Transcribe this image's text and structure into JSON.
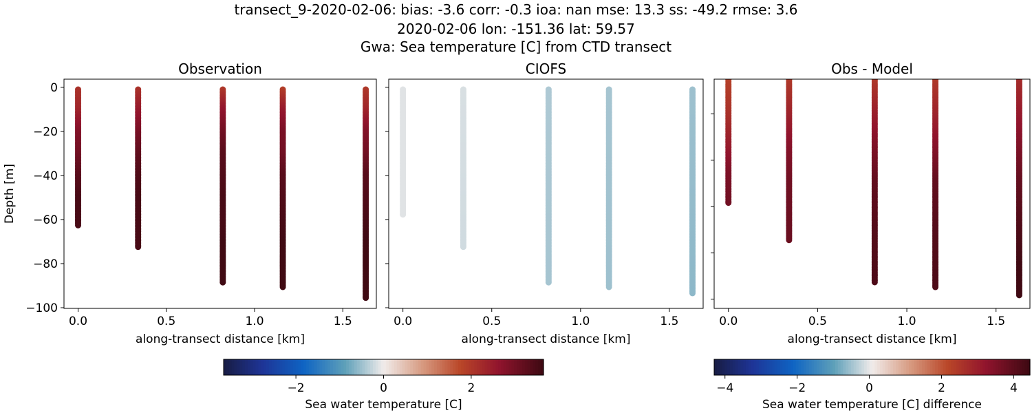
{
  "figure": {
    "title_lines": [
      "transect_9-2020-02-06: bias: -3.6  corr: -0.3  ioa: nan  mse: 13.3  ss: -49.2  rmse: 3.6",
      "2020-02-06 lon: -151.36 lat: 59.57",
      "Gwa: Sea temperature [C] from CTD transect"
    ]
  },
  "chart_data": [
    {
      "type": "scatter",
      "title": "Observation",
      "xlabel": "along-transect distance [km]",
      "ylabel": "Depth [m]",
      "xlim": [
        -0.08,
        1.69
      ],
      "ylim": [
        -100.3,
        3.7
      ],
      "xticks": [
        0.0,
        0.5,
        1.0,
        1.5
      ],
      "xtick_labels": [
        "0.0",
        "0.5",
        "1.0",
        "1.5"
      ],
      "yticks": [
        0,
        -20,
        -40,
        -60,
        -80,
        -100
      ],
      "ytick_labels": [
        "0",
        "−20",
        "−40",
        "−60",
        "−80",
        "−100"
      ],
      "colormap": "balance",
      "clim": [
        -3.65,
        3.65
      ],
      "profiles": [
        {
          "x": 0.0,
          "depth": [
            -1,
            -10,
            -20,
            -30,
            -40,
            -50,
            -63
          ],
          "value": [
            2.1,
            2.3,
            2.8,
            3.0,
            3.3,
            3.5,
            3.5
          ]
        },
        {
          "x": 0.34,
          "depth": [
            -1,
            -10,
            -20,
            -30,
            -40,
            -50,
            -60,
            -73
          ],
          "value": [
            2.1,
            2.5,
            2.9,
            3.2,
            3.4,
            3.5,
            3.5,
            3.5
          ]
        },
        {
          "x": 0.82,
          "depth": [
            -1,
            -10,
            -20,
            -30,
            -40,
            -50,
            -60,
            -70,
            -89
          ],
          "value": [
            2.0,
            2.6,
            3.0,
            3.3,
            3.4,
            3.5,
            3.5,
            3.6,
            3.6
          ]
        },
        {
          "x": 1.16,
          "depth": [
            -1,
            -10,
            -20,
            -30,
            -40,
            -50,
            -60,
            -70,
            -91
          ],
          "value": [
            1.9,
            2.5,
            2.9,
            3.0,
            3.3,
            3.4,
            3.5,
            3.6,
            3.6
          ]
        },
        {
          "x": 1.63,
          "depth": [
            -1,
            -10,
            -20,
            -30,
            -40,
            -50,
            -60,
            -70,
            -80,
            -96
          ],
          "value": [
            2.0,
            2.3,
            2.8,
            3.0,
            3.3,
            3.4,
            3.5,
            3.6,
            3.6,
            3.6
          ]
        }
      ]
    },
    {
      "type": "scatter",
      "title": "CIOFS",
      "xlabel": "along-transect distance [km]",
      "xlim": [
        -0.08,
        1.69
      ],
      "ylim": [
        -100.3,
        3.7
      ],
      "xticks": [
        0.0,
        0.5,
        1.0,
        1.5
      ],
      "xtick_labels": [
        "0.0",
        "0.5",
        "1.0",
        "1.5"
      ],
      "yticks": [
        0,
        -20,
        -40,
        -60,
        -80,
        -100
      ],
      "colormap": "balance",
      "clim": [
        -3.65,
        3.65
      ],
      "profiles": [
        {
          "x": 0.0,
          "depth": [
            -1,
            -58
          ],
          "value": [
            -0.1,
            -0.1
          ]
        },
        {
          "x": 0.34,
          "depth": [
            -1,
            -73
          ],
          "value": [
            -0.15,
            -0.2
          ]
        },
        {
          "x": 0.82,
          "depth": [
            -1,
            -89
          ],
          "value": [
            -0.4,
            -0.45
          ]
        },
        {
          "x": 1.16,
          "depth": [
            -1,
            -91
          ],
          "value": [
            -0.45,
            -0.5
          ]
        },
        {
          "x": 1.63,
          "depth": [
            -1,
            -94
          ],
          "value": [
            -0.5,
            -0.6
          ]
        }
      ]
    },
    {
      "type": "scatter",
      "title": "Obs - Model",
      "xlabel": "along-transect distance [km]",
      "xlim": [
        -0.08,
        1.69
      ],
      "ylim": [
        -104,
        -5
      ],
      "xticks": [
        0.0,
        0.5,
        1.0,
        1.5
      ],
      "xtick_labels": [
        "0.0",
        "0.5",
        "1.0",
        "1.5"
      ],
      "yticks": [
        -20,
        -40,
        -60,
        -80,
        -100
      ],
      "colormap": "balance",
      "clim": [
        -4.35,
        4.35
      ],
      "profiles": [
        {
          "x": 0.0,
          "depth": [
            -1,
            -20,
            -35,
            -45,
            -59
          ],
          "value": [
            2.1,
            2.5,
            3.0,
            3.4,
            3.6
          ]
        },
        {
          "x": 0.34,
          "depth": [
            -1,
            -20,
            -35,
            -50,
            -75
          ],
          "value": [
            2.2,
            2.8,
            3.3,
            3.6,
            3.7
          ]
        },
        {
          "x": 0.82,
          "depth": [
            -1,
            -20,
            -35,
            -50,
            -70,
            -93
          ],
          "value": [
            2.2,
            2.9,
            3.4,
            3.8,
            4.0,
            4.1
          ]
        },
        {
          "x": 1.16,
          "depth": [
            -1,
            -20,
            -35,
            -50,
            -70,
            -95
          ],
          "value": [
            2.2,
            2.8,
            3.3,
            3.8,
            4.0,
            4.1
          ]
        },
        {
          "x": 1.63,
          "depth": [
            -1,
            -20,
            -35,
            -50,
            -70,
            -85,
            -99
          ],
          "value": [
            2.5,
            3.0,
            3.4,
            3.8,
            4.1,
            4.3,
            4.3
          ]
        }
      ]
    }
  ],
  "colorbars": [
    {
      "label": "Sea water temperature [C]",
      "range": [
        -3.65,
        3.65
      ],
      "ticks": [
        -2,
        0,
        2
      ],
      "tick_labels": [
        "−2",
        "0",
        "2"
      ]
    },
    {
      "label": "Sea water temperature [C] difference",
      "range": [
        -4.3,
        4.45
      ],
      "ticks": [
        -4,
        -2,
        0,
        2,
        4
      ],
      "tick_labels": [
        "−4",
        "−2",
        "0",
        "2",
        "4"
      ]
    }
  ]
}
